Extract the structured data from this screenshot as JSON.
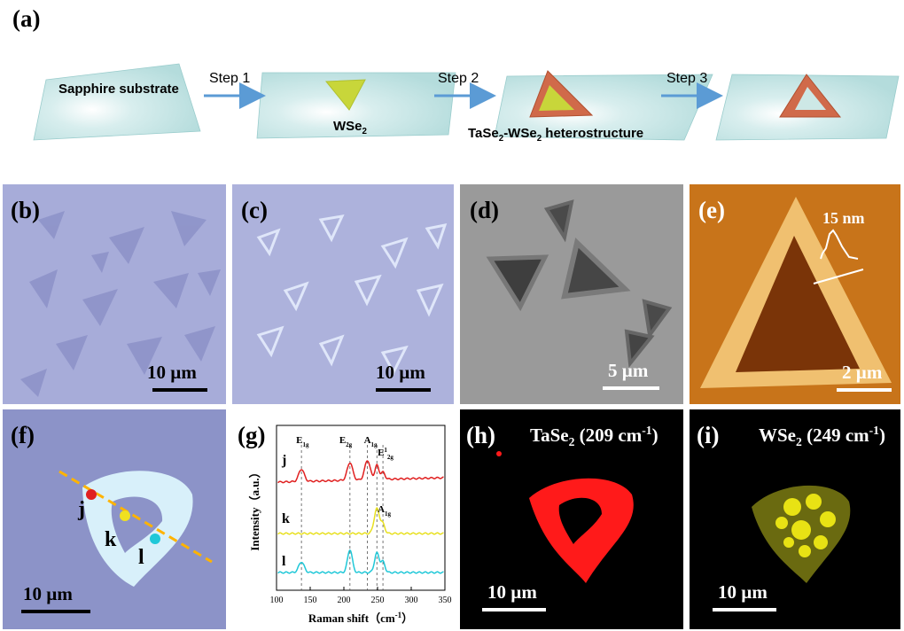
{
  "labels": {
    "a": "(a)",
    "b": "(b)",
    "c": "(c)",
    "d": "(d)",
    "e": "(e)",
    "f": "(f)",
    "g": "(g)",
    "h": "(h)",
    "i": "(i)"
  },
  "schematic": {
    "step1": "Step 1",
    "step2": "Step 2",
    "step3": "Step 3",
    "substrate": "Sapphire substrate",
    "wse2_main": "WSe",
    "wse2_sub": "2",
    "hetero_pre": "TaSe",
    "hetero_sub1": "2",
    "hetero_mid": "-WSe",
    "hetero_sub2": "2",
    "hetero_post": " heterostructure"
  },
  "scalebars": {
    "b": "10 µm",
    "c": "10 µm",
    "d": "5 µm",
    "e": "2 µm",
    "f": "10 µm",
    "h": "10 µm",
    "i": "10 µm"
  },
  "afm": {
    "height": "15 nm"
  },
  "points": {
    "j": "j",
    "k": "k",
    "l": "l"
  },
  "maps": {
    "h_main": "TaSe",
    "h_sub": "2",
    "h_rest": " (209 cm",
    "h_sup": "-1",
    "h_close": ")",
    "i_main": "WSe",
    "i_sub": "2",
    "i_rest": " (249 cm",
    "i_sup": "-1",
    "i_close": ")"
  },
  "colors": {
    "optical_bg": "#a7acd9",
    "sem_bg": "#9a9a9a",
    "afm_bg": "#c8741a",
    "map_red": "#ff1a1a",
    "map_yellow": "#e8e214",
    "arrow": "#5b9bd5"
  },
  "chart_data": {
    "type": "line",
    "xlabel": "Raman shift（cm",
    "xlabel_sup": "-1",
    "xlabel_close": "）",
    "ylabel": "Intensity（a.u.）",
    "xlim": [
      100,
      350
    ],
    "xticks": [
      "100",
      "150",
      "200",
      "250",
      "300",
      "350"
    ],
    "series": [
      {
        "name": "j",
        "color": "#e02020"
      },
      {
        "name": "k",
        "color": "#e8e020"
      },
      {
        "name": "l",
        "color": "#20c8d8"
      }
    ],
    "peak_lines_x": [
      137,
      209,
      235,
      249,
      258
    ],
    "annotations": [
      {
        "main": "E",
        "sub": "1g",
        "x": 137,
        "series": "j"
      },
      {
        "main": "E",
        "sub": "2g",
        "x": 209,
        "series": "j"
      },
      {
        "main": "A",
        "sub": "1g",
        "x": 235,
        "series": "j"
      },
      {
        "main": "E",
        "sub": "2g",
        "sup": "1",
        "x": 258,
        "series": "j"
      },
      {
        "main": "A",
        "sub": "1g",
        "x": 258,
        "series": "k"
      }
    ]
  }
}
